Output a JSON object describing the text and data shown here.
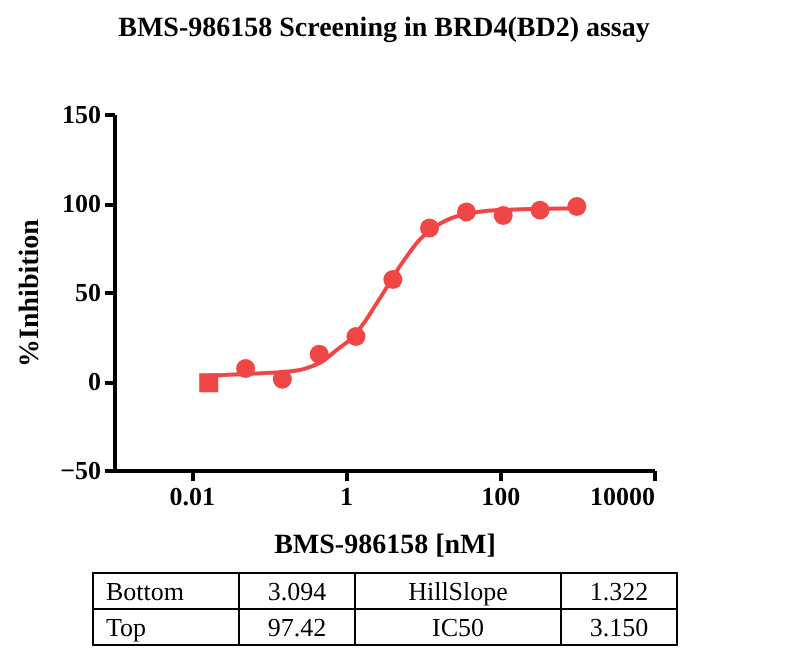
{
  "chart_data": {
    "type": "scatter",
    "title": "BMS-986158 Screening in BRD4(BD2) assay",
    "xlabel": "BMS-986158 [nM]",
    "ylabel": "%Inhibition",
    "log": "x",
    "xlim": [
      0.001,
      10000
    ],
    "xticks": [
      0.01,
      1,
      100,
      10000
    ],
    "ylim": [
      -50,
      150
    ],
    "yticks": [
      -50,
      0,
      50,
      100,
      150
    ],
    "grid": false,
    "series": [
      {
        "type": "line",
        "color": "#f04646",
        "line_style": "solid",
        "marker": "none",
        "x": [
          0.0169,
          0.05,
          0.15,
          0.3,
          0.5,
          0.8,
          1.2,
          1.7,
          2.4,
          3.15,
          4.2,
          6,
          9,
          15,
          30,
          100,
          1000
        ],
        "values": [
          3,
          4,
          5,
          7,
          11,
          18,
          24,
          32,
          42,
          50,
          59,
          69,
          79,
          87,
          93,
          96,
          97
        ]
      },
      {
        "color": "#f04646",
        "marker": "circle",
        "x": [
          0.0508,
          0.152,
          0.457,
          1.37,
          4.12,
          12.3,
          37,
          111,
          333,
          1000
        ],
        "values": [
          7,
          1,
          15,
          25,
          57,
          86,
          95,
          93,
          96,
          98
        ]
      },
      {
        "color": "#f04646",
        "marker": "square",
        "x": [
          0.0169
        ],
        "values": [
          -1
        ]
      }
    ],
    "annotations": [
      "Bottom",
      "3.094",
      "HillSlope",
      "1.322",
      "Top",
      "97.42",
      "IC50",
      "3.150"
    ]
  }
}
